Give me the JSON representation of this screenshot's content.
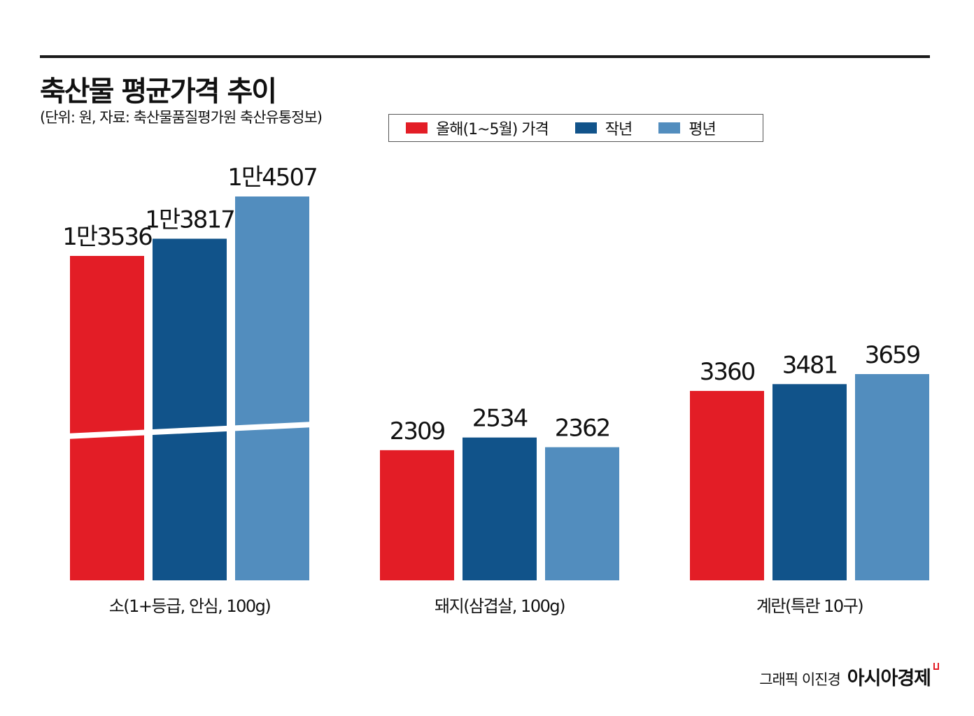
{
  "title": "축산물 평균가격 추이",
  "subtitle": "(단위: 원, 자료: 축산물품질평가원 축산유통정보)",
  "legend": [
    {
      "label": "올해(1~5월) 가격",
      "color": "#e31d26"
    },
    {
      "label": "작년",
      "color": "#11538a"
    },
    {
      "label": "평년",
      "color": "#528dbe"
    }
  ],
  "chart_data": {
    "type": "bar",
    "categories": [
      "소(1+등급, 안심, 100g)",
      "돼지(삼겹살, 100g)",
      "계란(특란 10구)"
    ],
    "series": [
      {
        "name": "올해(1~5월) 가격",
        "values": [
          13536,
          2309,
          3360
        ],
        "labels": [
          "1만3536",
          "2309",
          "3360"
        ],
        "color": "#e31d26"
      },
      {
        "name": "작년",
        "values": [
          13817,
          2534,
          3481
        ],
        "labels": [
          "1만3817",
          "2534",
          "3481"
        ],
        "color": "#11538a"
      },
      {
        "name": "평년",
        "values": [
          14507,
          2362,
          3659
        ],
        "labels": [
          "1만4507",
          "2362",
          "3659"
        ],
        "color": "#528dbe"
      }
    ],
    "axis_break": true,
    "grid": false
  },
  "credit": {
    "text": "그래픽 이진경",
    "brand": "아시아경제"
  }
}
